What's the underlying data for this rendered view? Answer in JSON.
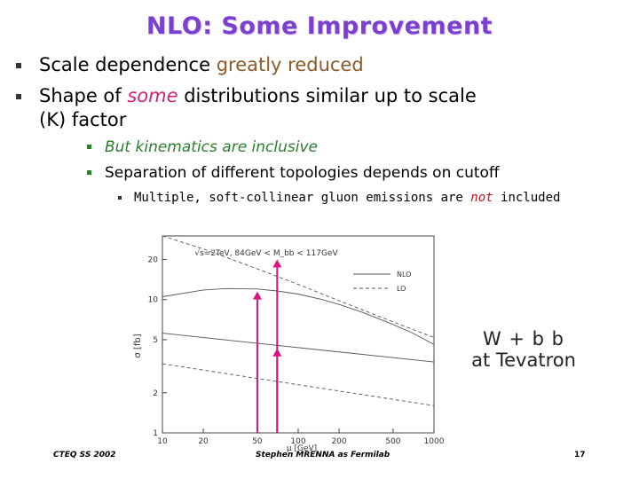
{
  "slide": {
    "title": "NLO: Some Improvement",
    "bullets_l1": [
      {
        "pre": "Scale dependence ",
        "hl": "greatly reduced",
        "post": ""
      },
      {
        "pre": "Shape of ",
        "hl": "some",
        "post": " distributions similar up to scale",
        "line2": "(K) factor"
      }
    ],
    "bullets_l2": [
      {
        "text": "But kinematics are inclusive"
      },
      {
        "text": "Separation of different topologies depends on cutoff"
      }
    ],
    "bullets_l3": [
      {
        "pre": "Multiple, soft-collinear gluon emissions are ",
        "hl": "not",
        "post": " included"
      }
    ],
    "annotation": {
      "line1": "W + b b",
      "line2": "at Tevatron"
    },
    "footer": {
      "left": "CTEQ SS 2002",
      "center": "Stephen MRENNA as Fermilab",
      "page": "17"
    }
  },
  "chart_data": {
    "type": "line",
    "title": "",
    "header_text": "√s=2TeV,  84GeV < M_bb < 117GeV",
    "ylabel": "σ [fb]",
    "xlabel": "μ [GeV]",
    "xscale": "log",
    "yscale": "log",
    "xlim": [
      10,
      1000
    ],
    "ylim": [
      1,
      30
    ],
    "xticks": [
      "10",
      "20",
      "50",
      "100",
      "200",
      "500",
      "1000"
    ],
    "yticks": [
      "1",
      "2",
      "5",
      "10",
      "20"
    ],
    "legend": [
      "NLO",
      "LO"
    ],
    "series": [
      {
        "name": "NLO",
        "style": "solid",
        "x": [
          10,
          20,
          30,
          50,
          70,
          100,
          150,
          200,
          300,
          500,
          700,
          1000
        ],
        "y": [
          10.5,
          11.8,
          12.1,
          12.0,
          11.6,
          11.0,
          10.0,
          9.2,
          8.0,
          6.5,
          5.6,
          4.6
        ]
      },
      {
        "name": "LO",
        "style": "dashed",
        "x": [
          10,
          20,
          50,
          100,
          200,
          500,
          1000
        ],
        "y": [
          30,
          24,
          17,
          13,
          9.8,
          6.8,
          5.2
        ]
      },
      {
        "name": "",
        "style": "solid",
        "x": [
          10,
          1000
        ],
        "y": [
          5.6,
          3.4
        ]
      },
      {
        "name": "",
        "style": "dashed",
        "x": [
          10,
          1000
        ],
        "y": [
          3.3,
          1.6
        ]
      }
    ],
    "arrows": [
      {
        "x": 50,
        "from_y": 1,
        "to_y": 11.5
      },
      {
        "x": 70,
        "from_y": 1,
        "to_y": 20
      },
      {
        "x": 70,
        "from_y": 1,
        "to_y": 4.3
      }
    ],
    "colors": {
      "curve": "#555555",
      "arrow": "#e01080",
      "frame": "#444444"
    }
  }
}
